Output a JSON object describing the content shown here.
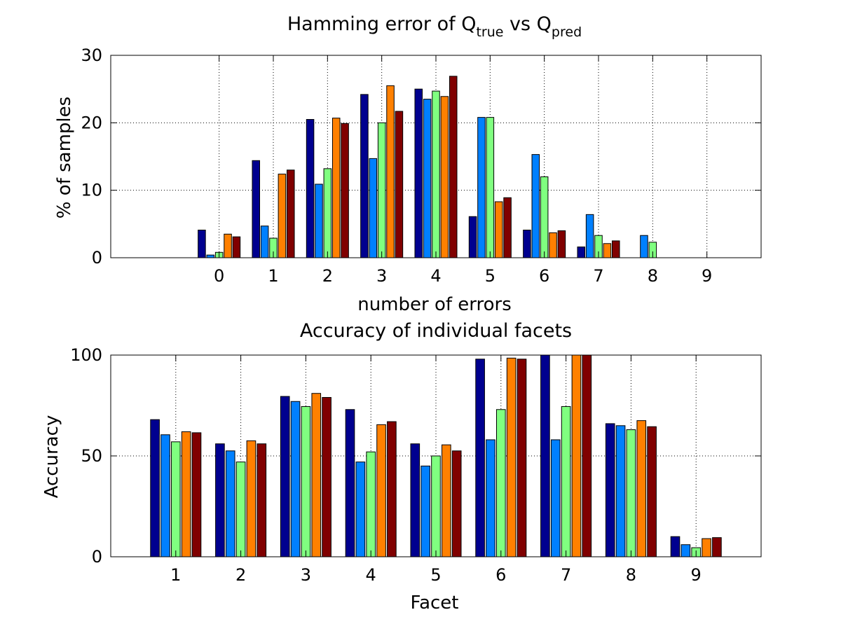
{
  "chart_data": [
    {
      "type": "bar",
      "title": {
        "prefix": "Hamming error of Q",
        "sub1": "true",
        "middle": " vs Q",
        "sub2": "pred"
      },
      "xlabel": "number of errors",
      "ylabel": "% of samples",
      "categories": [
        "0",
        "1",
        "2",
        "3",
        "4",
        "5",
        "6",
        "7",
        "8",
        "9"
      ],
      "xlim": [
        -2,
        10
      ],
      "ylim": [
        0,
        30
      ],
      "yticks": [
        "0",
        "10",
        "20",
        "30"
      ],
      "grid": true,
      "series": [
        {
          "color": "#00008f",
          "values": [
            4.1,
            14.4,
            20.5,
            24.2,
            25.0,
            6.1,
            4.1,
            1.6,
            0,
            0
          ]
        },
        {
          "color": "#0080ff",
          "values": [
            0.4,
            4.7,
            10.9,
            14.7,
            23.5,
            20.8,
            15.3,
            6.4,
            3.3,
            0
          ]
        },
        {
          "color": "#80ff80",
          "values": [
            0.8,
            2.9,
            13.2,
            20.0,
            24.7,
            20.8,
            12.0,
            3.3,
            2.3,
            0
          ]
        },
        {
          "color": "#ff8000",
          "values": [
            3.5,
            12.4,
            20.7,
            25.5,
            23.9,
            8.3,
            3.7,
            2.1,
            0,
            0
          ]
        },
        {
          "color": "#800000",
          "values": [
            3.1,
            13.0,
            19.9,
            21.7,
            26.9,
            8.9,
            4.0,
            2.5,
            0,
            0
          ]
        }
      ]
    },
    {
      "type": "bar",
      "title": "Accuracy of individual facets",
      "xlabel": "Facet",
      "ylabel": "Accuracy",
      "categories": [
        "1",
        "2",
        "3",
        "4",
        "5",
        "6",
        "7",
        "8",
        "9"
      ],
      "xlim": [
        0,
        10
      ],
      "ylim": [
        0,
        100
      ],
      "yticks": [
        "0",
        "50",
        "100"
      ],
      "grid": true,
      "series": [
        {
          "color": "#00008f",
          "values": [
            68,
            56,
            79.5,
            73,
            56,
            98,
            100,
            66,
            10
          ]
        },
        {
          "color": "#0080ff",
          "values": [
            60.5,
            52.5,
            77,
            47,
            45,
            58,
            58,
            65,
            6
          ]
        },
        {
          "color": "#80ff80",
          "values": [
            57,
            47,
            74.5,
            52,
            50,
            73,
            74.5,
            63,
            4.5
          ]
        },
        {
          "color": "#ff8000",
          "values": [
            62,
            57.5,
            81,
            65.5,
            55.5,
            98.5,
            100,
            67.5,
            9
          ]
        },
        {
          "color": "#800000",
          "values": [
            61.5,
            56,
            79,
            67,
            52.5,
            98,
            100,
            64.5,
            9.5
          ]
        }
      ]
    }
  ]
}
